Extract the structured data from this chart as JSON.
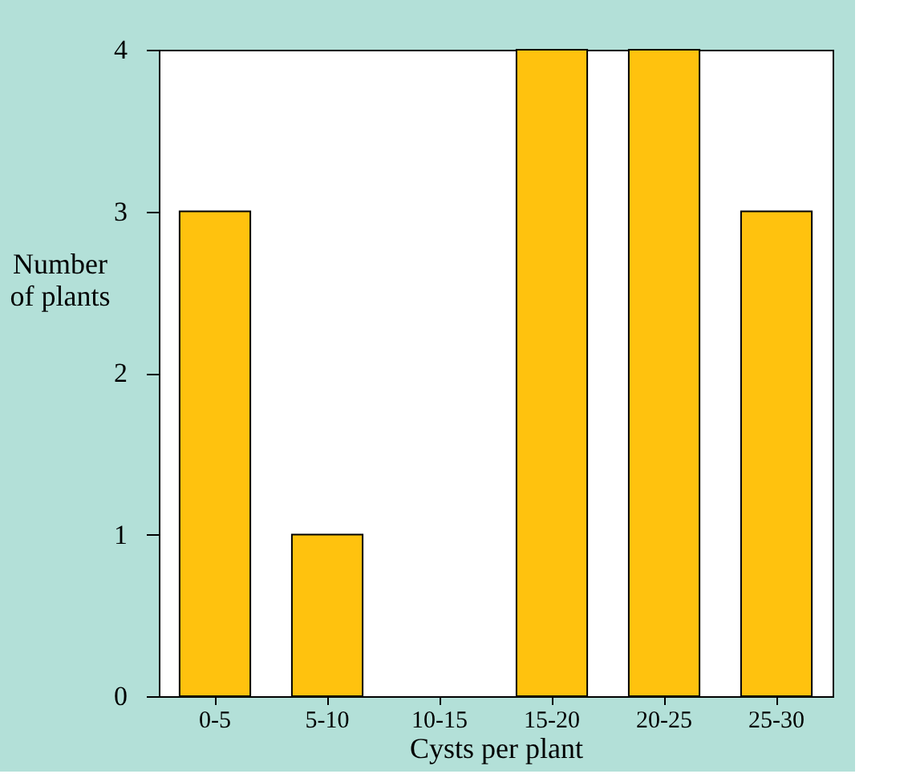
{
  "chart_data": {
    "type": "bar",
    "xlabel": "Cysts per plant",
    "ylabel": "Number\nof plants",
    "categories": [
      "0-5",
      "5-10",
      "10-15",
      "15-20",
      "20-25",
      "25-30"
    ],
    "values": [
      3,
      1,
      0,
      4,
      4,
      3
    ],
    "color": "#ffc20e",
    "ylim": [
      0,
      4
    ],
    "yticks": [
      0,
      1,
      2,
      3,
      4
    ],
    "grid": false
  }
}
